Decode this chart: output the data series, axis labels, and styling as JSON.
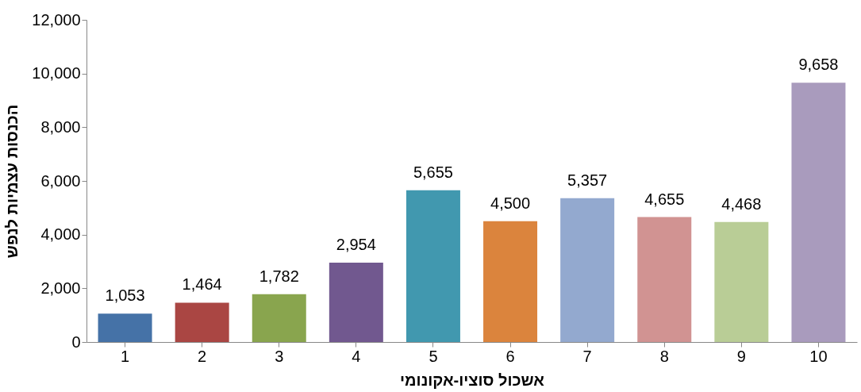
{
  "chart_data": {
    "type": "bar",
    "xlabel": "אשכול סוציו-אקונומי",
    "ylabel": "הכנסות עצמיות לנפש",
    "categories": [
      "1",
      "2",
      "3",
      "4",
      "5",
      "6",
      "7",
      "8",
      "9",
      "10"
    ],
    "values": [
      1053,
      1464,
      1782,
      2954,
      5655,
      4500,
      5357,
      4655,
      4468,
      9658
    ],
    "colors": [
      "#4572a7",
      "#aa4643",
      "#89a54e",
      "#71588f",
      "#4198af",
      "#db843d",
      "#93a9cf",
      "#d19392",
      "#b9cd96",
      "#a99bbd"
    ],
    "value_labels": [
      "1,053",
      "1,464",
      "1,782",
      "2,954",
      "5,655",
      "4,500",
      "5,357",
      "4,655",
      "4,468",
      "9,658"
    ],
    "ylim": [
      0,
      12000
    ],
    "yticks": [
      0,
      {
        "value": 2000,
        "label": "2,000"
      },
      {
        "value": 4000,
        "label": "4,000"
      },
      {
        "value": 6000,
        "label": "6,000"
      },
      {
        "value": 8000,
        "label": "8,000"
      },
      {
        "value": 10000,
        "label": "10,000"
      },
      {
        "value": 12000,
        "label": "12,000"
      }
    ],
    "grid": false
  }
}
